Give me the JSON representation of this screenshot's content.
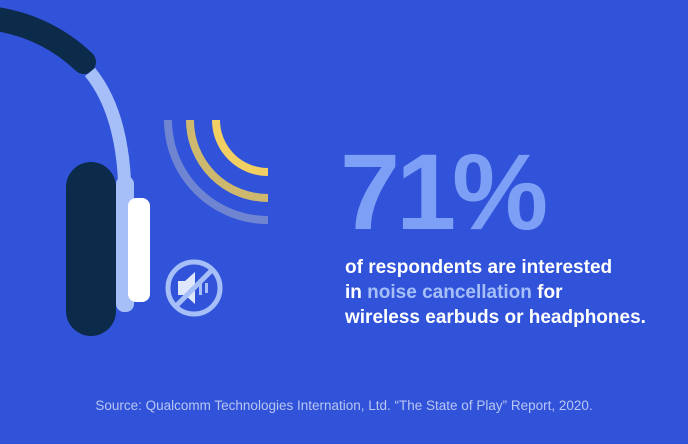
{
  "stat": {
    "value": "71%"
  },
  "description": {
    "line1": "of respondents are interested",
    "line2_prefix": "in ",
    "line2_highlight": "noise cancellation",
    "line2_suffix": " for",
    "line3": "wireless earbuds or headphones."
  },
  "source": "Source: Qualcomm Technologies Internation, Ltd. “The State of Play” Report, 2020.",
  "colors": {
    "background": "#3153d9",
    "stat": "#7d9ff6",
    "highlight": "#a6bff8",
    "headphone_dark": "#0c2a4a",
    "headphone_light": "#a6bff8",
    "sound_waves": "#f2cf62"
  },
  "icons": [
    "headphones-icon",
    "sound-waves-icon",
    "mute-speaker-icon"
  ]
}
